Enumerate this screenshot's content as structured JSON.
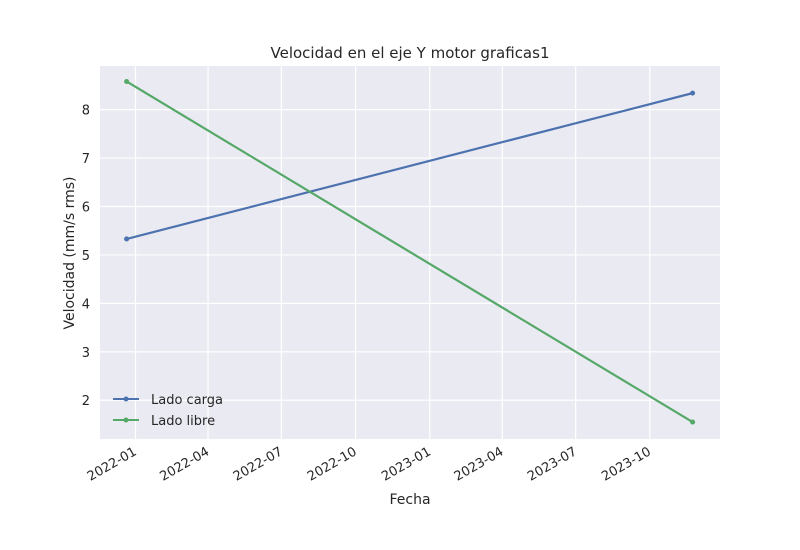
{
  "chart_data": {
    "type": "line",
    "title": "Velocidad en el eje Y motor graficas1",
    "xlabel": "Fecha",
    "ylabel": "Velocidad (mm/s rms)",
    "x_tick_labels": [
      "2022-01",
      "2022-04",
      "2022-07",
      "2022-10",
      "2023-01",
      "2023-04",
      "2023-07",
      "2023-10"
    ],
    "y_ticks": [
      2,
      3,
      4,
      5,
      6,
      7,
      8
    ],
    "x": [
      "2021-12-21",
      "2023-11-23"
    ],
    "series": [
      {
        "name": "Lado carga",
        "color": "#4c72b0",
        "values": [
          5.33,
          8.34
        ]
      },
      {
        "name": "Lado libre",
        "color": "#55a868",
        "values": [
          8.58,
          1.55
        ]
      }
    ],
    "ylim": [
      1.2,
      8.9
    ],
    "xlim": [
      "2021-11-18",
      "2023-12-27"
    ],
    "grid": true,
    "legend_position": "lower-left",
    "background_color": "#eaeaf2"
  }
}
